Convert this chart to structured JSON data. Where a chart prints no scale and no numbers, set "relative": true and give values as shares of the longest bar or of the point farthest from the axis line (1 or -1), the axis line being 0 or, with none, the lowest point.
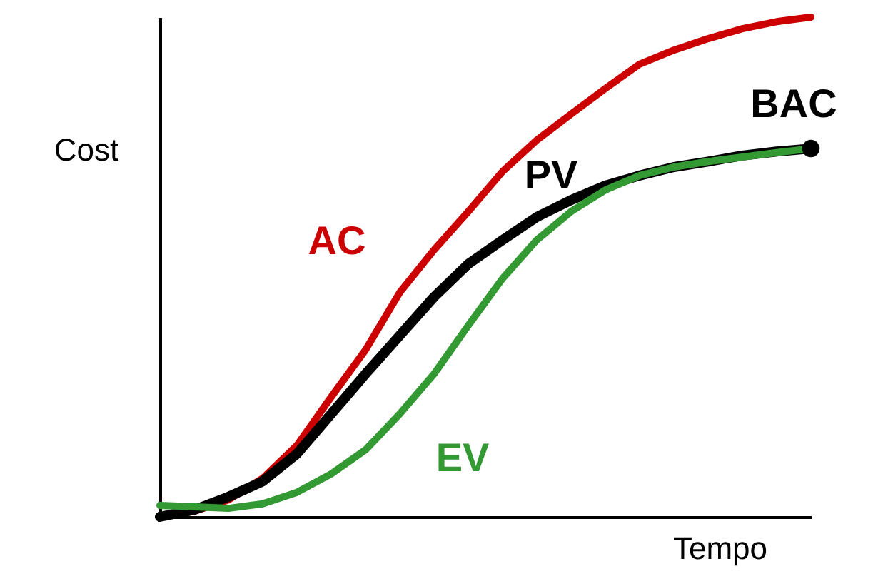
{
  "chart_data": {
    "type": "line",
    "relative": true,
    "xlabel": "Tempo",
    "ylabel": "Cost",
    "grid": false,
    "marker": "none",
    "line_style": "solid",
    "categories": [
      null,
      null,
      null,
      null,
      null,
      null,
      null,
      null,
      null,
      null,
      null,
      null,
      null,
      null,
      null,
      null,
      null,
      null,
      null,
      null
    ],
    "series": [
      {
        "name": "AC",
        "color": "#cc0000",
        "values": [
          0,
          0.011,
          0.034,
          0.077,
          0.143,
          0.24,
          0.334,
          0.449,
          0.534,
          0.611,
          0.691,
          0.754,
          0.806,
          0.857,
          0.906,
          0.934,
          0.957,
          0.977,
          0.991,
          1
        ]
      },
      {
        "name": "PV",
        "color": "#000000",
        "values": [
          0,
          0.014,
          0.04,
          0.071,
          0.126,
          0.206,
          0.286,
          0.363,
          0.44,
          0.506,
          0.554,
          0.6,
          0.634,
          0.663,
          0.683,
          0.7,
          0.711,
          0.723,
          0.731,
          0.737
        ]
      },
      {
        "name": "EV",
        "color": "#339933",
        "values": [
          0.023,
          0.02,
          0.017,
          0.026,
          0.049,
          0.086,
          0.134,
          0.206,
          0.286,
          0.383,
          0.477,
          0.554,
          0.611,
          0.654,
          0.683,
          0.7,
          0.711,
          0.72,
          0.729,
          0.737
        ]
      }
    ],
    "annotations": [
      {
        "text": "BAC",
        "y": 0.737
      }
    ]
  }
}
